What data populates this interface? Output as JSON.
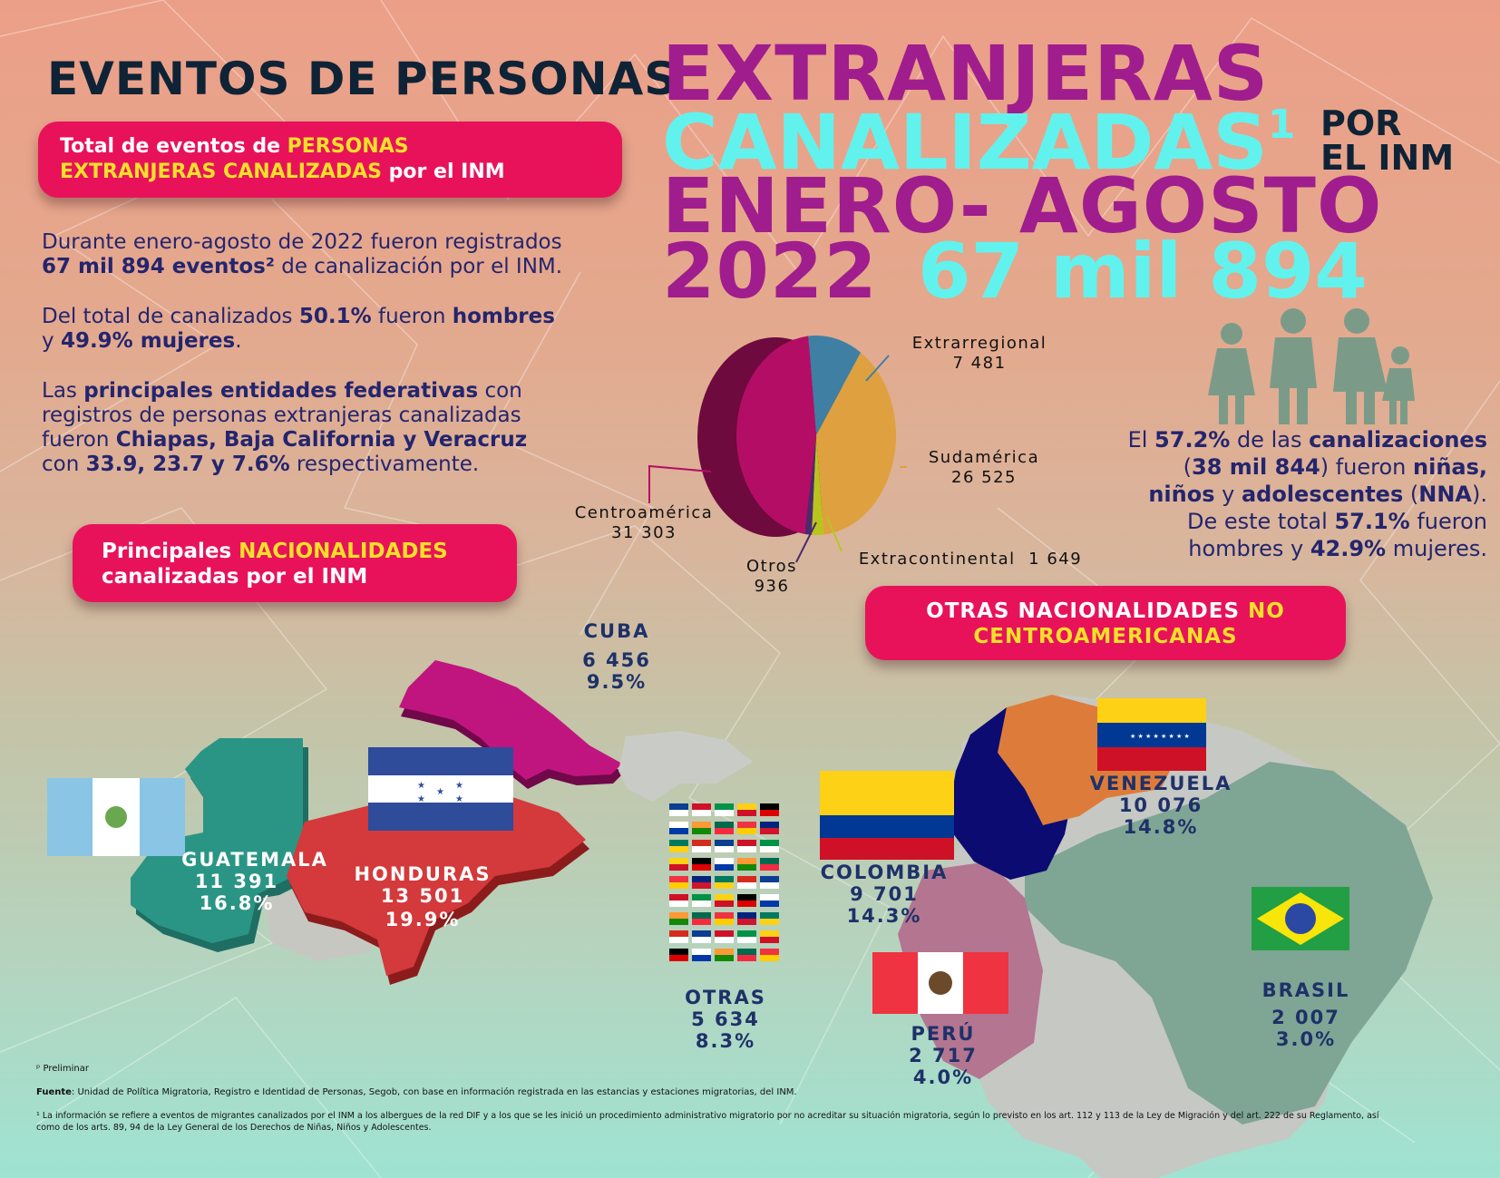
{
  "header": {
    "line1": "EVENTOS DE PERSONAS",
    "line2": "EXTRANJERAS",
    "line3": "CANALIZADAS",
    "line3_sup": "1",
    "line3_small_a": "POR",
    "line3_small_b": "EL INM",
    "line4": "ENERO- AGOSTO",
    "year": "2022",
    "total": "67 mil 894"
  },
  "pill_total": {
    "part1": "Total de eventos de ",
    "part2": "PERSONAS",
    "part3": "EXTRANJERAS CANALIZADAS",
    "part4": " por el INM"
  },
  "paragraphs": {
    "p1_a": "Durante enero-agosto de 2022 fueron registrados",
    "p1_b": "67 mil 894 eventos²",
    "p1_c": " de canalización por el INM.",
    "p2_a": "Del total de canalizados ",
    "p2_b": "50.1%",
    "p2_c": " fueron ",
    "p2_d": "hombres",
    "p2_e": "y ",
    "p2_f": "49.9% mujeres",
    "p2_g": ".",
    "p3_a": "Las ",
    "p3_b": "principales entidades federativas",
    "p3_c": " con",
    "p3_d": "registros de personas extranjeras canalizadas",
    "p3_e": "fueron ",
    "p3_f": "Chiapas, Baja California y Veracruz",
    "p3_g": "con ",
    "p3_h": "33.9, 23.7 y 7.6%",
    "p3_i": " respectivamente."
  },
  "chart_data": {
    "type": "pie",
    "categories": [
      "Centroamérica",
      "Extrarregional",
      "Sudamérica",
      "Extracontinental",
      "Otros"
    ],
    "values": [
      31303,
      7481,
      26525,
      1649,
      936
    ],
    "value_labels": [
      "31 303",
      "7 481",
      "26 525",
      "1 649",
      "936"
    ],
    "colors": [
      "#b40d66",
      "#3f7fa3",
      "#dfa13f",
      "#b9c51e",
      "#4a2b6c"
    ]
  },
  "nna": {
    "t1": "El ",
    "t2": "57.2%",
    "t3": " de las ",
    "t4": "canalizaciones",
    "t5": "(",
    "t6": "38 mil 844",
    "t7": ") fueron ",
    "t8": "niñas,",
    "t9": "niños",
    "t10": " y ",
    "t11": "adolescentes",
    "t12": " (",
    "t13": "NNA",
    "t14": ").",
    "t15": "De este total ",
    "t16": "57.1%",
    "t17": " fueron",
    "t18": "hombres y ",
    "t19": "42.9%",
    "t20": " mujeres."
  },
  "pill_nat": {
    "part1": "Principales ",
    "part2": "NACIONALIDADES",
    "part3": "canalizadas por el INM"
  },
  "pill_other": {
    "part1": "OTRAS NACIONALIDADES ",
    "part2": "NO",
    "part3": "CENTROAMERICANAS"
  },
  "nationalities": {
    "cuba": {
      "name": "CUBA",
      "value": "6 456",
      "pct": "9.5%"
    },
    "guatemala": {
      "name": "GUATEMALA",
      "value": "11 391",
      "pct": "16.8%"
    },
    "honduras": {
      "name": "HONDURAS",
      "value": "13 501",
      "pct": "19.9%"
    },
    "otras": {
      "name": "OTRAS",
      "value": "5 634",
      "pct": "8.3%"
    },
    "colombia": {
      "name": "COLOMBIA",
      "value": "9 701",
      "pct": "14.3%"
    },
    "venezuela": {
      "name": "VENEZUELA",
      "value": "10 076",
      "pct": "14.8%"
    },
    "peru": {
      "name": "PERÚ",
      "value": "2 717",
      "pct": "4.0%"
    },
    "brasil": {
      "name": "BRASIL",
      "value": "2 007",
      "pct": "3.0%"
    }
  },
  "footer": {
    "prelim": "ᵖ Preliminar",
    "fuente_label": "Fuente",
    "fuente_text": ": Unidad de Política Migratoria, Registro e Identidad de Personas, Segob, con base en información registrada en las estancias y estaciones migratorias, del INM.",
    "note1": "¹ La información se refiere a eventos de migrantes canalizados por el INM a los albergues de la red DIF y a los que se les inició un procedimiento administrativo migratorio por no acreditar su situación migratoria, según lo previsto en los art. 112 y 113 de la Ley de Migración y del art. 222 de su Reglamento, así",
    "note2": "como de los arts. 89, 94 de la Ley General de los Derechos de Niñas, Niños y Adolescentes."
  }
}
